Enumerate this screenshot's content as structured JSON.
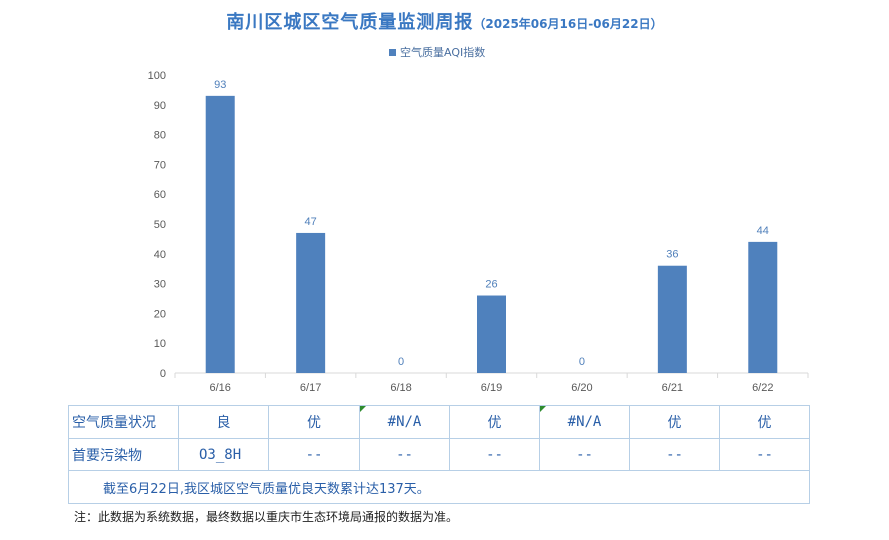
{
  "header": {
    "title": "南川区城区空气质量监测周报",
    "subtitle": "（2025年06月16日-06月22日）"
  },
  "colors": {
    "bar": "#4f81bd",
    "title": "#3a78c2",
    "text": "#2a5fa8",
    "flag": "#2e8b2e"
  },
  "chart_data": {
    "type": "bar",
    "categories": [
      "6/16",
      "6/17",
      "6/18",
      "6/19",
      "6/20",
      "6/21",
      "6/22"
    ],
    "series": [
      {
        "name": "空气质量AQI指数",
        "values": [
          93,
          47,
          0,
          26,
          0,
          36,
          44
        ]
      }
    ],
    "ylim": [
      0,
      100
    ],
    "yticks": [
      0,
      10,
      20,
      30,
      40,
      50,
      60,
      70,
      80,
      90,
      100
    ],
    "legend_position": "top-center",
    "grid": false
  },
  "table": {
    "row1": {
      "label": "空气质量状况",
      "cells": [
        "良",
        "优",
        "#N/A",
        "优",
        "#N/A",
        "优",
        "优"
      ]
    },
    "row2": {
      "label": "首要污染物",
      "cells": [
        "O3_8H",
        "--",
        "--",
        "--",
        "--",
        "--",
        "--"
      ]
    },
    "summary": "截至6月22日,我区城区空气质量优良天数累计达137天。"
  },
  "footer": {
    "note": "注：此数据为系统数据，最终数据以重庆市生态环境局通报的数据为准。"
  }
}
